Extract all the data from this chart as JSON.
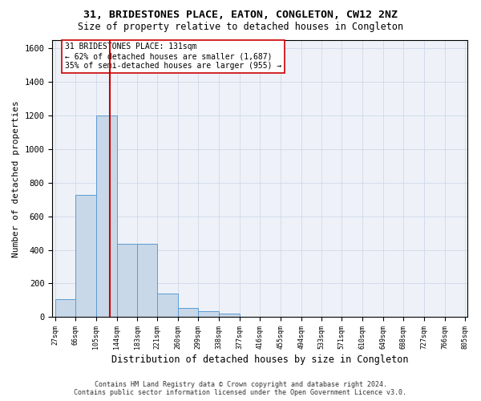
{
  "title": "31, BRIDESTONES PLACE, EATON, CONGLETON, CW12 2NZ",
  "subtitle": "Size of property relative to detached houses in Congleton",
  "xlabel": "Distribution of detached houses by size in Congleton",
  "ylabel": "Number of detached properties",
  "bar_values": [
    105,
    730,
    1200,
    435,
    435,
    140,
    55,
    35,
    20,
    0,
    0,
    0,
    0,
    0,
    0,
    0,
    0,
    0,
    0,
    0
  ],
  "bin_edges": [
    27,
    66,
    105,
    144,
    183,
    221,
    260,
    299,
    338,
    377,
    416,
    455,
    494,
    533,
    571,
    610,
    649,
    688,
    727,
    766,
    805
  ],
  "x_labels": [
    "27sqm",
    "66sqm",
    "105sqm",
    "144sqm",
    "183sqm",
    "221sqm",
    "260sqm",
    "299sqm",
    "338sqm",
    "377sqm",
    "416sqm",
    "455sqm",
    "494sqm",
    "533sqm",
    "571sqm",
    "610sqm",
    "649sqm",
    "688sqm",
    "727sqm",
    "766sqm",
    "805sqm"
  ],
  "bar_color": "#c8d8e8",
  "bar_edge_color": "#5b9bd5",
  "property_line_x": 131,
  "property_line_color": "#cc0000",
  "annotation_text": "31 BRIDESTONES PLACE: 131sqm\n← 62% of detached houses are smaller (1,687)\n35% of semi-detached houses are larger (955) →",
  "annotation_box_color": "#ffffff",
  "annotation_box_edge": "#cc0000",
  "ylim": [
    0,
    1650
  ],
  "yticks": [
    0,
    200,
    400,
    600,
    800,
    1000,
    1200,
    1400,
    1600
  ],
  "bg_color": "#eef2f8",
  "grid_color": "#d0d8e8",
  "footer": "Contains HM Land Registry data © Crown copyright and database right 2024.\nContains public sector information licensed under the Open Government Licence v3.0."
}
